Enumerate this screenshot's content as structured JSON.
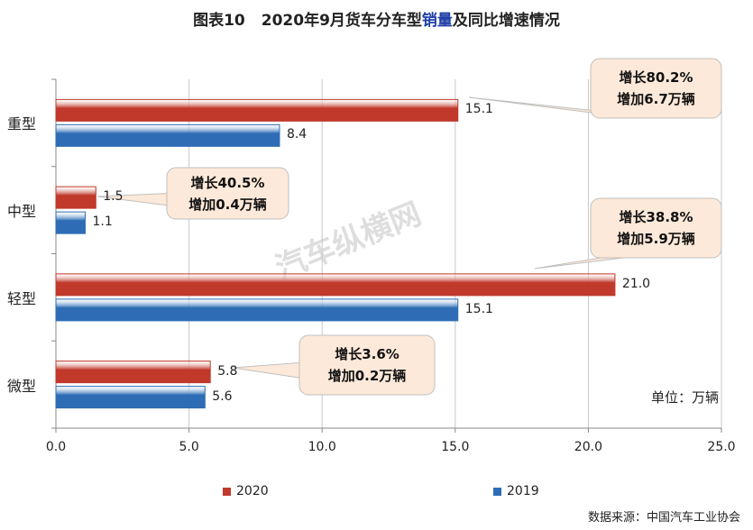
{
  "title": {
    "prefix": "图表10",
    "part1": "2020年9月货车分车型",
    "highlight": "销量",
    "part2": "及同比增速情况"
  },
  "unit_note": "单位：万辆",
  "source_note": "数据来源：中国汽车工业协会",
  "watermark": "汽车纵横网",
  "colors": {
    "s2020": "#c0392b",
    "s2019": "#2e6db5",
    "callout_fill": "#fde9d9",
    "callout_stroke": "#bfbfbf"
  },
  "callouts": [
    {
      "line1": "增长80.2%",
      "line2": "增加6.7万辆"
    },
    {
      "line1": "增长40.5%",
      "line2": "增加0.4万辆"
    },
    {
      "line1": "增长38.8%",
      "line2": "增加5.9万辆"
    },
    {
      "line1": "增长3.6%",
      "line2": "增加0.2万辆"
    }
  ],
  "chart_data": {
    "type": "bar",
    "orientation": "horizontal",
    "categories": [
      "重型",
      "中型",
      "轻型",
      "微型"
    ],
    "series": [
      {
        "name": "2020",
        "values": [
          15.1,
          1.5,
          21.0,
          5.8
        ],
        "labels": [
          "15.1",
          "1.5",
          "21.0",
          "5.8"
        ]
      },
      {
        "name": "2019",
        "values": [
          8.4,
          1.1,
          15.1,
          5.6
        ],
        "labels": [
          "8.4",
          "1.1",
          "15.1",
          "5.6"
        ]
      }
    ],
    "xlim": [
      0,
      25
    ],
    "xticks": [
      "0.0",
      "5.0",
      "10.0",
      "15.0",
      "20.0",
      "25.0"
    ],
    "grid": "vertical",
    "legend": "bottom"
  }
}
